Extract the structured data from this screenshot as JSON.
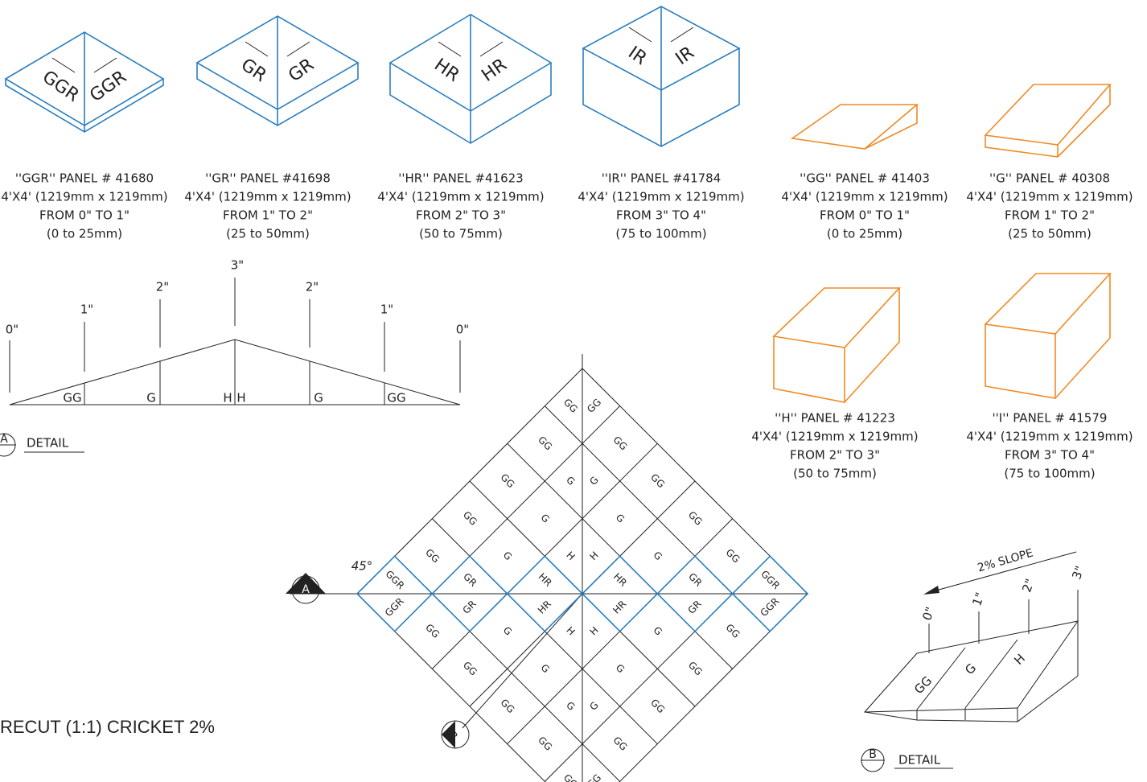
{
  "panels": [
    {
      "name": "''GGR'' PANEL # 41680",
      "size": "4'X4' (1219mm x 1219mm)",
      "range": "FROM 0\" TO 1\"",
      "mm": "(0 to 25mm)",
      "marks": [
        "GGR",
        "GGR"
      ]
    },
    {
      "name": "''GR'' PANEL #41698",
      "size": "4'X4' (1219mm x 1219mm)",
      "range": "FROM 1\" TO 2\"",
      "mm": "(25 to 50mm)",
      "marks": [
        "GR",
        "GR"
      ]
    },
    {
      "name": "''HR'' PANEL #41623",
      "size": "4'X4' (1219mm x 1219mm)",
      "range": "FROM 2\" TO 3\"",
      "mm": "(50 to 75mm)",
      "marks": [
        "HR",
        "HR"
      ]
    },
    {
      "name": "''IR'' PANEL #41784",
      "size": "4'X4' (1219mm x 1219mm)",
      "range": "FROM 3\" TO 4\"",
      "mm": "(75 to 100mm)",
      "marks": [
        "IR",
        "IR"
      ]
    },
    {
      "name": "''GG'' PANEL # 41403",
      "size": "4'X4' (1219mm x 1219mm)",
      "range": "FROM 0\" TO 1\"",
      "mm": "(0 to 25mm)"
    },
    {
      "name": "''G'' PANEL # 40308",
      "size": "4'X4' (1219mm x 1219mm)",
      "range": "FROM 1\" TO 2\"",
      "mm": "(25 to 50mm)"
    },
    {
      "name": "''H'' PANEL # 41223",
      "size": "4'X4' (1219mm x 1219mm)",
      "range": "FROM 2\" TO 3\"",
      "mm": "(50 to 75mm)"
    },
    {
      "name": "''I'' PANEL # 41579",
      "size": "4'X4' (1219mm x 1219mm)",
      "range": "FROM 3\" TO 4\"",
      "mm": "(75 to 100mm)"
    }
  ],
  "detail_a": {
    "heights": [
      "0\"",
      "1\"",
      "2\"",
      "3\"",
      "2\"",
      "1\"",
      "0\""
    ],
    "sections": [
      "GG",
      "G",
      "H",
      "H",
      "G",
      "GG"
    ],
    "marker": "A",
    "title": "DETAIL"
  },
  "cricket": {
    "title": "RECUT (1:1) CRICKET 2%",
    "angle": "45°",
    "marker_a": "A",
    "marker_b": "B",
    "cells": [
      [
        "GG",
        "GG"
      ],
      [
        "GG"
      ],
      [
        "GG"
      ],
      [
        "GG"
      ],
      [
        "GG"
      ],
      [
        "GGR",
        "GGR"
      ],
      [
        "GG"
      ],
      [
        "G",
        "G"
      ],
      [
        "G"
      ],
      [
        "G"
      ],
      [
        "GR",
        "GR"
      ],
      [
        "GG"
      ],
      [
        "GG"
      ],
      [
        "G"
      ],
      [
        "H",
        "H"
      ],
      [
        "HR",
        "HR"
      ],
      [
        "G"
      ],
      [
        "GG"
      ],
      [
        "GG"
      ],
      [
        "G"
      ],
      [
        "HR",
        "HR"
      ],
      [
        "H",
        "H"
      ],
      [
        "G"
      ],
      [
        "GG"
      ],
      [
        "GG"
      ],
      [
        "GR",
        "GR"
      ],
      [
        "G"
      ],
      [
        "G"
      ],
      [
        "G",
        "G"
      ],
      [
        "GG"
      ],
      [
        "GGR",
        "GGR"
      ],
      [
        "GG"
      ],
      [
        "GG"
      ],
      [
        "GG"
      ],
      [
        "GG"
      ],
      [
        "GG",
        "GG"
      ]
    ]
  },
  "detail_b": {
    "slope": "2% SLOPE",
    "heights": [
      "0\"",
      "1\"",
      "2\"",
      "3\""
    ],
    "sections": [
      "GG",
      "G",
      "H"
    ],
    "marker": "B",
    "title": "DETAIL"
  }
}
